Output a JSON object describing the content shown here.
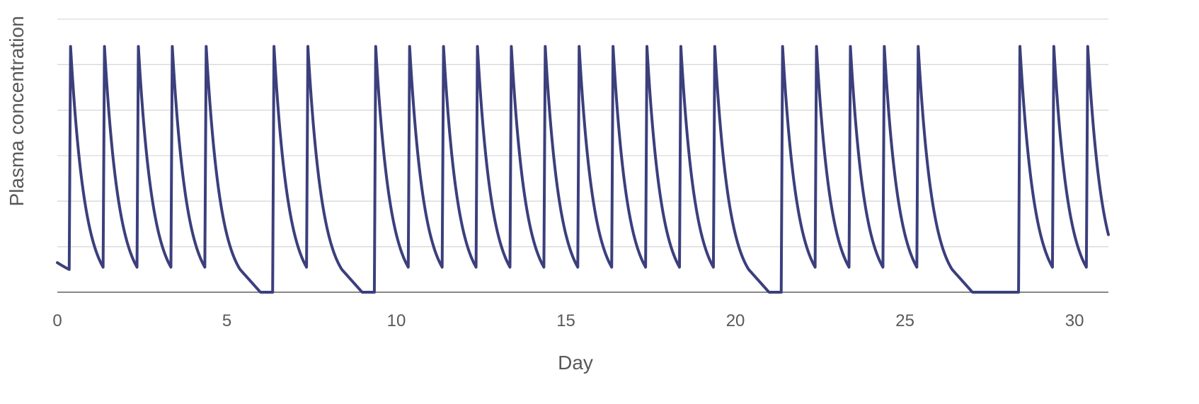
{
  "chart_data": {
    "type": "line",
    "title": "",
    "xlabel": "Day",
    "ylabel": "Plasma concentration",
    "xlim": [
      0,
      31
    ],
    "ylim": [
      0,
      6
    ],
    "xticks": [
      0,
      5,
      10,
      15,
      20,
      25,
      30
    ],
    "y_grid_lines": [
      0,
      1,
      2,
      3,
      4,
      5,
      6
    ],
    "y_tick_labels_shown": false,
    "grid": "horizontal",
    "legend": "none",
    "line_color": "#3b3f7c",
    "series": [
      {
        "name": "",
        "dose_times_days": [
          0.35,
          1.35,
          2.35,
          3.35,
          4.35,
          6.35,
          7.35,
          9.35,
          10.35,
          11.35,
          12.35,
          13.35,
          14.35,
          15.35,
          16.35,
          17.35,
          18.35,
          19.35,
          21.35,
          22.35,
          23.35,
          24.35,
          25.35,
          28.35,
          29.35,
          30.35
        ],
        "peak_concentration": 5.4,
        "trough_concentration_after_1_day": 0.5,
        "return_to_zero_after_last_dose_days": 1.6,
        "start_concentration_day_0": 0.65
      }
    ]
  }
}
